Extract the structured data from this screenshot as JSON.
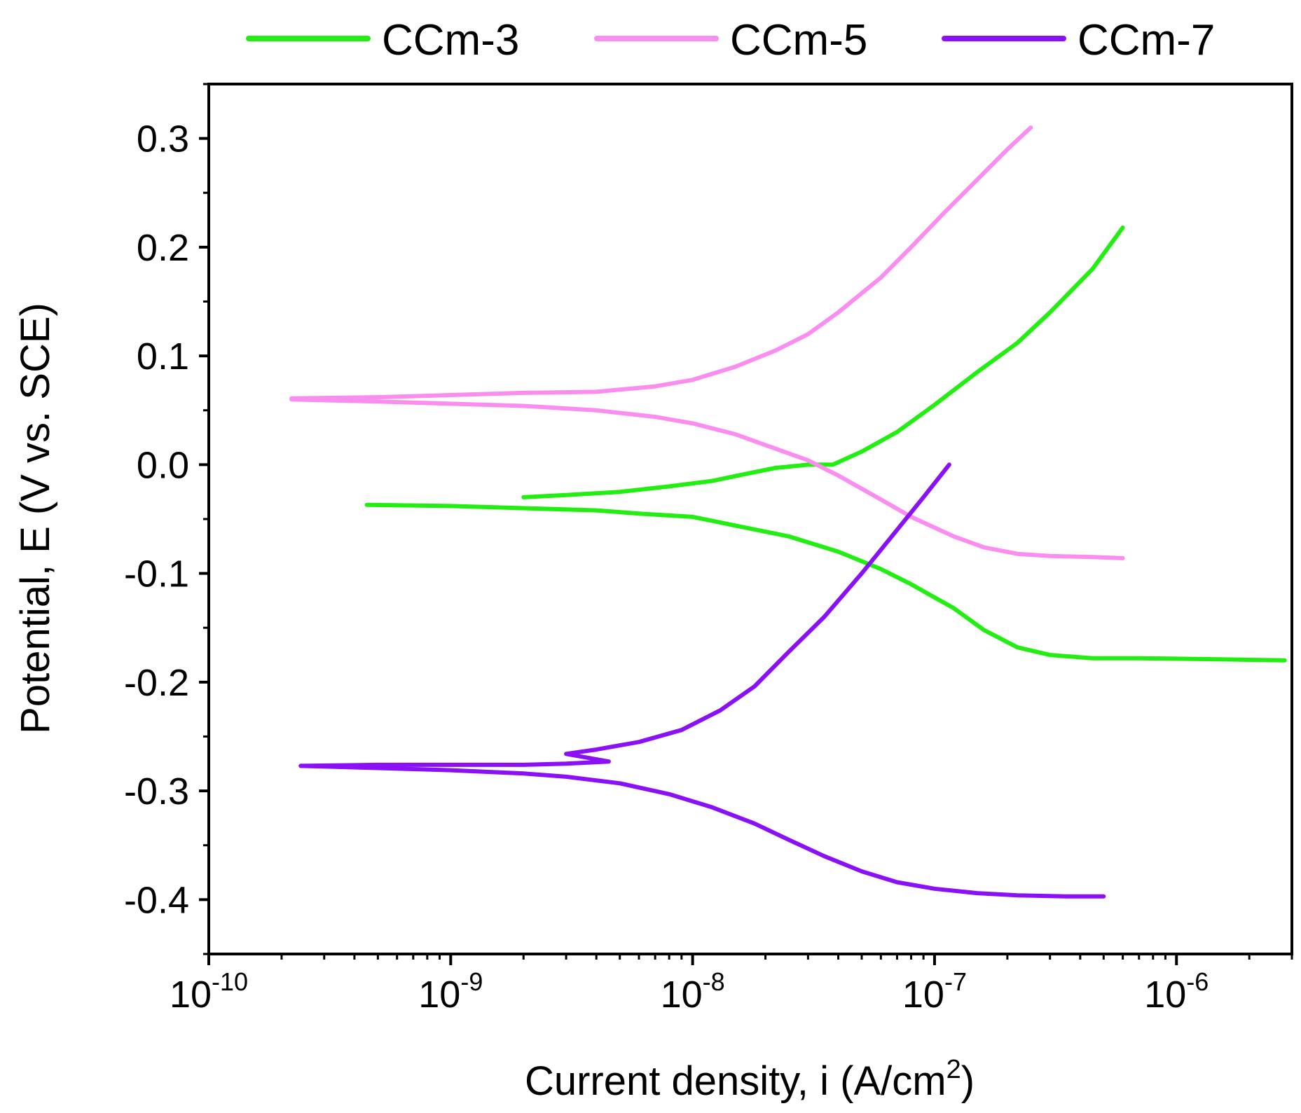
{
  "chart_data": {
    "type": "line",
    "x_scale": "log",
    "xlabel_main": "Current density, i (A/cm",
    "xlabel_sup": "2",
    "xlabel_close": ")",
    "ylabel": "Potential, E (V vs. SCE)",
    "xlim": [
      1e-10,
      3e-06
    ],
    "ylim": [
      -0.45,
      0.35
    ],
    "x_ticks": [
      {
        "value": 1e-10,
        "base": "10",
        "exp": "-10"
      },
      {
        "value": 1e-09,
        "base": "10",
        "exp": "-9"
      },
      {
        "value": 1e-08,
        "base": "10",
        "exp": "-8"
      },
      {
        "value": 1e-07,
        "base": "10",
        "exp": "-7"
      },
      {
        "value": 1e-06,
        "base": "10",
        "exp": "-6"
      }
    ],
    "y_ticks": [
      {
        "value": 0.3,
        "label": "0.3"
      },
      {
        "value": 0.2,
        "label": "0.2"
      },
      {
        "value": 0.1,
        "label": "0.1"
      },
      {
        "value": 0.0,
        "label": "0.0"
      },
      {
        "value": -0.1,
        "label": "-0.1"
      },
      {
        "value": -0.2,
        "label": "-0.2"
      },
      {
        "value": -0.3,
        "label": "-0.3"
      },
      {
        "value": -0.4,
        "label": "-0.4"
      }
    ],
    "legend_position": "top",
    "series": [
      {
        "name": "CCm-3",
        "color": "#22ee11",
        "branches": [
          {
            "x": [
              4.5e-10,
              1e-09,
              2e-09,
              4e-09,
              6e-09,
              1e-08,
              1.5e-08,
              2.5e-08,
              4e-08,
              6e-08,
              8e-08,
              1.2e-07,
              1.6e-07,
              2.2e-07,
              3e-07,
              4.5e-07,
              7e-07,
              1.5e-06,
              2.8e-06
            ],
            "y": [
              -0.037,
              -0.038,
              -0.04,
              -0.042,
              -0.045,
              -0.048,
              -0.056,
              -0.066,
              -0.08,
              -0.096,
              -0.11,
              -0.132,
              -0.152,
              -0.168,
              -0.175,
              -0.178,
              -0.178,
              -0.179,
              -0.18
            ]
          },
          {
            "x": [
              2e-09,
              3e-09,
              5e-09,
              8e-09,
              1.2e-08,
              1.7e-08,
              2.2e-08,
              3e-08,
              3.8e-08,
              5e-08,
              7e-08,
              1e-07,
              1.5e-07,
              2.2e-07,
              3e-07,
              4.5e-07,
              6e-07
            ],
            "y": [
              -0.03,
              -0.028,
              -0.025,
              -0.02,
              -0.015,
              -0.008,
              -0.003,
              0.0,
              0.0,
              0.012,
              0.03,
              0.055,
              0.085,
              0.112,
              0.14,
              0.18,
              0.218
            ]
          }
        ]
      },
      {
        "name": "CCm-5",
        "color": "#f98ef0",
        "branches": [
          {
            "x": [
              2.2e-10,
              5e-10,
              1e-09,
              2e-09,
              4e-09,
              7e-09,
              1e-08,
              1.5e-08,
              2e-08,
              3e-08,
              4e-08,
              6e-08,
              8e-08,
              1.2e-07,
              1.6e-07,
              2.2e-07,
              3e-07,
              4.5e-07,
              6e-07
            ],
            "y": [
              0.06,
              0.058,
              0.056,
              0.054,
              0.05,
              0.044,
              0.038,
              0.028,
              0.018,
              0.004,
              -0.01,
              -0.032,
              -0.048,
              -0.066,
              -0.076,
              -0.082,
              -0.084,
              -0.085,
              -0.086
            ]
          },
          {
            "x": [
              2.2e-10,
              5e-10,
              1e-09,
              2e-09,
              4e-09,
              7e-09,
              1e-08,
              1.5e-08,
              2.2e-08,
              3e-08,
              4e-08,
              6e-08,
              8e-08,
              1.1e-07,
              1.5e-07,
              2e-07,
              2.5e-07
            ],
            "y": [
              0.061,
              0.062,
              0.064,
              0.066,
              0.067,
              0.072,
              0.078,
              0.09,
              0.105,
              0.12,
              0.14,
              0.172,
              0.2,
              0.232,
              0.262,
              0.29,
              0.31
            ]
          }
        ]
      },
      {
        "name": "CCm-7",
        "color": "#8a11f5",
        "branches": [
          {
            "x": [
              2.4e-10,
              5e-10,
              1e-09,
              2e-09,
              3e-09,
              5e-09,
              8e-09,
              1.2e-08,
              1.8e-08,
              2.5e-08,
              3.5e-08,
              5e-08,
              7e-08,
              1e-07,
              1.5e-07,
              2.2e-07,
              3.5e-07,
              5e-07
            ],
            "y": [
              -0.277,
              -0.279,
              -0.281,
              -0.284,
              -0.287,
              -0.293,
              -0.303,
              -0.315,
              -0.33,
              -0.345,
              -0.36,
              -0.374,
              -0.384,
              -0.39,
              -0.394,
              -0.396,
              -0.397,
              -0.397
            ]
          },
          {
            "x": [
              2.4e-10,
              5e-10,
              1e-09,
              2e-09,
              3e-09,
              4.5e-09,
              3e-09,
              4e-09,
              6e-09,
              9e-09,
              1.3e-08,
              1.8e-08,
              2.5e-08,
              3.5e-08,
              5e-08,
              7e-08,
              9e-08,
              1.15e-07
            ],
            "y": [
              -0.277,
              -0.276,
              -0.276,
              -0.276,
              -0.275,
              -0.273,
              -0.266,
              -0.262,
              -0.255,
              -0.244,
              -0.226,
              -0.204,
              -0.172,
              -0.14,
              -0.1,
              -0.06,
              -0.03,
              0.0
            ]
          }
        ]
      }
    ]
  }
}
